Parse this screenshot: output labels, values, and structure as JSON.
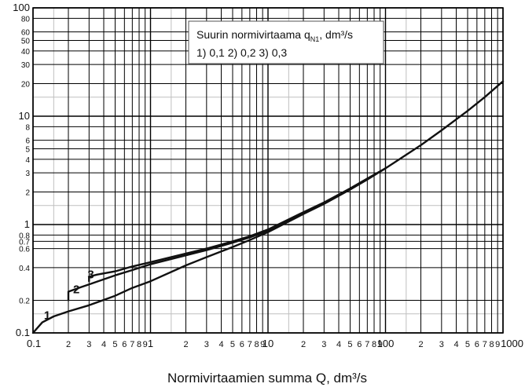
{
  "chart_data": {
    "type": "line",
    "xscale": "log",
    "yscale": "log",
    "xlim": [
      0.1,
      1000
    ],
    "ylim": [
      0.1,
      100
    ],
    "grid": true,
    "xlabel": "Normivirtaamien summa Q, dm³/s",
    "ylabel": "",
    "x_ticks": [
      {
        "value": 0.1,
        "label": "0.1"
      },
      {
        "value": 0.2,
        "label": "2"
      },
      {
        "value": 0.3,
        "label": "3"
      },
      {
        "value": 0.4,
        "label": "4"
      },
      {
        "value": 0.5,
        "label": "5"
      },
      {
        "value": 0.6,
        "label": "6"
      },
      {
        "value": 0.7,
        "label": "7"
      },
      {
        "value": 0.8,
        "label": "8"
      },
      {
        "value": 0.9,
        "label": "9"
      },
      {
        "value": 1,
        "label": "1"
      },
      {
        "value": 2,
        "label": "2"
      },
      {
        "value": 3,
        "label": "3"
      },
      {
        "value": 4,
        "label": "4"
      },
      {
        "value": 5,
        "label": "5"
      },
      {
        "value": 6,
        "label": "6"
      },
      {
        "value": 7,
        "label": "7"
      },
      {
        "value": 8,
        "label": "8"
      },
      {
        "value": 9,
        "label": "9"
      },
      {
        "value": 10,
        "label": "10"
      },
      {
        "value": 20,
        "label": "2"
      },
      {
        "value": 30,
        "label": "3"
      },
      {
        "value": 40,
        "label": "4"
      },
      {
        "value": 50,
        "label": "5"
      },
      {
        "value": 60,
        "label": "6"
      },
      {
        "value": 70,
        "label": "7"
      },
      {
        "value": 80,
        "label": "8"
      },
      {
        "value": 90,
        "label": "9"
      },
      {
        "value": 100,
        "label": "100"
      },
      {
        "value": 200,
        "label": "2"
      },
      {
        "value": 300,
        "label": "3"
      },
      {
        "value": 400,
        "label": "4"
      },
      {
        "value": 500,
        "label": "5"
      },
      {
        "value": 600,
        "label": "6"
      },
      {
        "value": 700,
        "label": "7"
      },
      {
        "value": 800,
        "label": "8"
      },
      {
        "value": 900,
        "label": "9"
      },
      {
        "value": 1000,
        "label": "1000"
      }
    ],
    "y_ticks": [
      {
        "value": 0.1,
        "label": "0.1"
      },
      {
        "value": 0.2,
        "label": "0.2"
      },
      {
        "value": 0.4,
        "label": "0.4"
      },
      {
        "value": 0.6,
        "label": "0.6"
      },
      {
        "value": 0.7,
        "label": "0.7"
      },
      {
        "value": 0.8,
        "label": "0.8"
      },
      {
        "value": 1,
        "label": "1"
      },
      {
        "value": 2,
        "label": "2"
      },
      {
        "value": 3,
        "label": "3"
      },
      {
        "value": 4,
        "label": "4"
      },
      {
        "value": 5,
        "label": "5"
      },
      {
        "value": 6,
        "label": "6"
      },
      {
        "value": 8,
        "label": "8"
      },
      {
        "value": 10,
        "label": "10"
      },
      {
        "value": 20,
        "label": "20"
      },
      {
        "value": 30,
        "label": "30"
      },
      {
        "value": 40,
        "label": "40"
      },
      {
        "value": 50,
        "label": "50"
      },
      {
        "value": 60,
        "label": "60"
      },
      {
        "value": 80,
        "label": "80"
      },
      {
        "value": 100,
        "label": "100"
      }
    ],
    "legend": {
      "placement": "top-right",
      "title": "Suurin normivirtaama q",
      "title_sub": "N1",
      "title_suffix": ", dm³/s",
      "entries": "1) 0,1  2) 0,2  3) 0,3"
    },
    "series": [
      {
        "name": "1",
        "x": [
          0.1,
          0.12,
          0.15,
          0.2,
          0.3,
          0.5,
          0.7,
          1,
          2,
          3,
          5,
          7,
          10,
          20,
          30,
          50,
          70,
          100,
          200,
          300,
          500,
          700,
          1000
        ],
        "y": [
          0.1,
          0.125,
          0.142,
          0.158,
          0.18,
          0.22,
          0.26,
          0.3,
          0.42,
          0.5,
          0.62,
          0.72,
          0.85,
          1.25,
          1.55,
          2.1,
          2.6,
          3.3,
          5.4,
          7.4,
          11.2,
          15,
          21
        ]
      },
      {
        "name": "2",
        "x": [
          0.2,
          0.2,
          0.25,
          0.3,
          0.5,
          0.7,
          1,
          2,
          3,
          5,
          7,
          10,
          20,
          30,
          50,
          70,
          100
        ],
        "y": [
          0.2,
          0.24,
          0.262,
          0.28,
          0.34,
          0.38,
          0.43,
          0.52,
          0.58,
          0.68,
          0.76,
          0.88,
          1.28,
          1.58,
          2.15,
          2.65,
          3.3
        ]
      },
      {
        "name": "3",
        "x": [
          0.3,
          0.3,
          0.35,
          0.5,
          0.7,
          1,
          2,
          3,
          5,
          7,
          10,
          20,
          30,
          50,
          70,
          100
        ],
        "y": [
          0.3,
          0.33,
          0.345,
          0.37,
          0.41,
          0.45,
          0.54,
          0.6,
          0.7,
          0.78,
          0.9,
          1.3,
          1.6,
          2.15,
          2.65,
          3.3
        ]
      }
    ]
  }
}
